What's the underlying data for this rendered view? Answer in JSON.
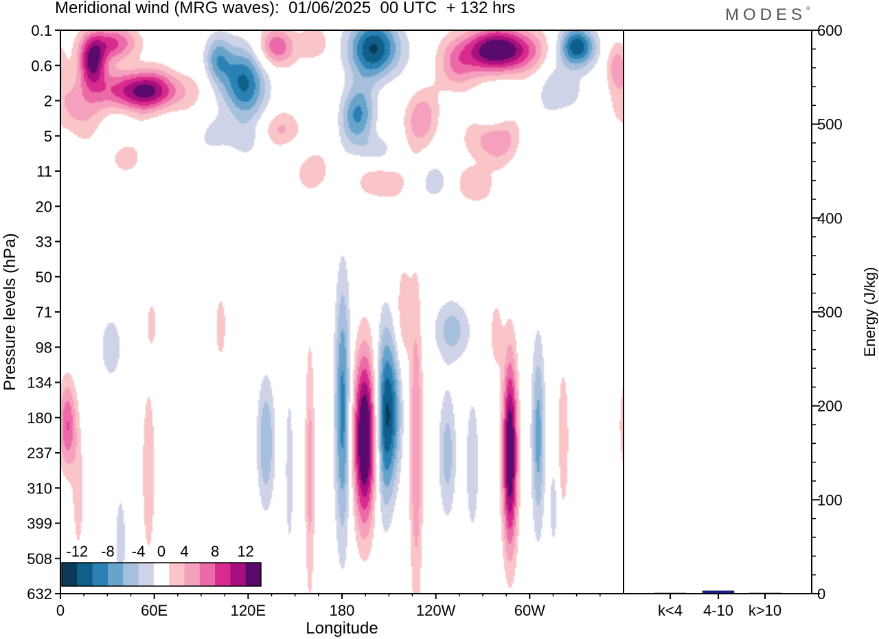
{
  "title": "Meridional wind (MRG waves):  01/06/2025  00 UTC  + 132 hrs",
  "logo": "MODES",
  "chart_data": [
    {
      "type": "heatmap",
      "title": "Meridional wind (MRG waves):  01/06/2025  00 UTC  + 132 hrs",
      "xlabel": "Longitude",
      "ylabel": "Pressure levels (hPa)",
      "x_ticks": [
        "0",
        "60E",
        "120E",
        "180",
        "120W",
        "60W"
      ],
      "x_tick_values": [
        0,
        60,
        120,
        180,
        240,
        300
      ],
      "xlim": [
        0,
        360
      ],
      "y_ticks": [
        "0.1",
        "0.6",
        "2",
        "5",
        "11",
        "20",
        "33",
        "50",
        "71",
        "98",
        "134",
        "180",
        "237",
        "310",
        "399",
        "508",
        "632"
      ],
      "colorbar": {
        "labels": [
          "-12",
          "-8",
          "-4",
          "0",
          "4",
          "8",
          "12"
        ],
        "levels": [
          -14,
          -12,
          -10,
          -8,
          -6,
          -4,
          -2,
          2,
          4,
          6,
          8,
          10,
          12,
          14
        ],
        "colors": [
          "#0b3b58",
          "#0f5f8a",
          "#2a82b4",
          "#68a3cc",
          "#a5bfdc",
          "#cfd3e8",
          "#ffffff",
          "#f9c5c8",
          "#f5a1bd",
          "#ec6aa7",
          "#d82b8d",
          "#a80f7e",
          "#5a0a6b"
        ]
      },
      "blobs": [
        {
          "lon": 194,
          "lev": 11.6,
          "sx": 5,
          "sy": 1.7,
          "v": 16
        },
        {
          "lon": 207,
          "lev": 11.0,
          "sx": 4,
          "sy": 1.8,
          "v": -10
        },
        {
          "lon": 213,
          "lev": 10.8,
          "sx": 4,
          "sy": 1.4,
          "v": -6
        },
        {
          "lon": 180,
          "lev": 10.8,
          "sx": 3.5,
          "sy": 2.6,
          "v": -9
        },
        {
          "lon": 227,
          "lev": 11.8,
          "sx": 3,
          "sy": 3.2,
          "v": 6
        },
        {
          "lon": 219,
          "lev": 8.0,
          "sx": 3.5,
          "sy": 1.0,
          "v": 4
        },
        {
          "lon": 159,
          "lev": 12.5,
          "sx": 2.2,
          "sy": 2.6,
          "v": 5
        },
        {
          "lon": 131,
          "lev": 11.7,
          "sx": 4,
          "sy": 1.3,
          "v": -6
        },
        {
          "lon": 146,
          "lev": 12.5,
          "sx": 2.2,
          "sy": 2.0,
          "v": -3
        },
        {
          "lon": 247,
          "lev": 12.0,
          "sx": 4,
          "sy": 1.3,
          "v": -5
        },
        {
          "lon": 263,
          "lev": 12.3,
          "sx": 3,
          "sy": 1.4,
          "v": -4
        },
        {
          "lon": 250,
          "lev": 8.5,
          "sx": 8,
          "sy": 0.6,
          "v": -5
        },
        {
          "lon": 287,
          "lev": 12.0,
          "sx": 3.4,
          "sy": 1.9,
          "v": 15
        },
        {
          "lon": 278,
          "lev": 8.6,
          "sx": 3,
          "sy": 0.8,
          "v": 3
        },
        {
          "lon": 305,
          "lev": 11.5,
          "sx": 3,
          "sy": 1.9,
          "v": -7
        },
        {
          "lon": 321,
          "lev": 11.6,
          "sx": 2.6,
          "sy": 1.5,
          "v": 4
        },
        {
          "lon": 315,
          "lev": 13.5,
          "sx": 2.2,
          "sy": 1.0,
          "v": -3
        },
        {
          "lon": 4,
          "lev": 11.2,
          "sx": 4,
          "sy": 0.9,
          "v": 8
        },
        {
          "lon": 11,
          "lev": 13.2,
          "sx": 3,
          "sy": 1.4,
          "v": 3
        },
        {
          "lon": 32,
          "lev": 9.0,
          "sx": 6,
          "sy": 0.8,
          "v": -3
        },
        {
          "lon": 56,
          "lev": 12.5,
          "sx": 3,
          "sy": 1.8,
          "v": 4
        },
        {
          "lon": 38,
          "lev": 14.5,
          "sx": 3,
          "sy": 1.2,
          "v": -3
        },
        {
          "lon": 102,
          "lev": 8.4,
          "sx": 3,
          "sy": 0.8,
          "v": 3
        },
        {
          "lon": 58,
          "lev": 8.3,
          "sx": 2.5,
          "sy": 0.5,
          "v": 3
        },
        {
          "lon": 33,
          "lev": 0.35,
          "sx": 12,
          "sy": 0.35,
          "v": 8
        },
        {
          "lon": 20,
          "lev": 0.9,
          "sx": 6,
          "sy": 0.5,
          "v": 12
        },
        {
          "lon": 52,
          "lev": 1.7,
          "sx": 18,
          "sy": 0.4,
          "v": 13
        },
        {
          "lon": 10,
          "lev": 2.2,
          "sx": 10,
          "sy": 0.6,
          "v": 5
        },
        {
          "lon": 117,
          "lev": 1.5,
          "sx": 9,
          "sy": 0.7,
          "v": -11
        },
        {
          "lon": 100,
          "lev": 0.8,
          "sx": 6,
          "sy": 0.5,
          "v": -7
        },
        {
          "lon": 138,
          "lev": 0.45,
          "sx": 8,
          "sy": 0.4,
          "v": 8
        },
        {
          "lon": 163,
          "lev": 0.35,
          "sx": 7,
          "sy": 0.35,
          "v": 4
        },
        {
          "lon": 200,
          "lev": 0.5,
          "sx": 12,
          "sy": 0.6,
          "v": -12
        },
        {
          "lon": 190,
          "lev": 2.4,
          "sx": 8,
          "sy": 0.6,
          "v": -8
        },
        {
          "lon": 280,
          "lev": 0.55,
          "sx": 17,
          "sy": 0.45,
          "v": 15
        },
        {
          "lon": 330,
          "lev": 0.45,
          "sx": 8,
          "sy": 0.4,
          "v": -12
        },
        {
          "lon": 253,
          "lev": 1.1,
          "sx": 8,
          "sy": 0.5,
          "v": 5
        },
        {
          "lon": 140,
          "lev": 2.8,
          "sx": 12,
          "sy": 0.35,
          "v": 4
        },
        {
          "lon": 230,
          "lev": 2.5,
          "sx": 9,
          "sy": 0.6,
          "v": 5
        },
        {
          "lon": 276,
          "lev": 3.0,
          "sx": 10,
          "sy": 0.5,
          "v": 8
        },
        {
          "lon": 275,
          "lev": 2.5,
          "sx": 8,
          "sy": 0.5,
          "v": -4
        },
        {
          "lon": 264,
          "lev": 4.4,
          "sx": 8,
          "sy": 0.4,
          "v": 4
        },
        {
          "lon": 200,
          "lev": 3.4,
          "sx": 8,
          "sy": 0.3,
          "v": -3
        },
        {
          "lon": 110,
          "lev": 3.0,
          "sx": 15,
          "sy": 0.4,
          "v": -3
        },
        {
          "lon": 160,
          "lev": 4.0,
          "sx": 10,
          "sy": 0.4,
          "v": 3
        },
        {
          "lon": 205,
          "lev": 4.3,
          "sx": 10,
          "sy": 0.4,
          "v": 4
        },
        {
          "lon": 320,
          "lev": 1.7,
          "sx": 10,
          "sy": 0.5,
          "v": -4
        },
        {
          "lon": 355,
          "lev": 1.0,
          "sx": 5,
          "sy": 0.5,
          "v": 5
        },
        {
          "lon": 40,
          "lev": 3.6,
          "sx": 8,
          "sy": 0.3,
          "v": 3
        },
        {
          "lon": 240,
          "lev": 4.3,
          "sx": 7,
          "sy": 0.35,
          "v": -3
        }
      ]
    },
    {
      "type": "bar",
      "ylabel": "Energy (J/kg)",
      "categories": [
        "k<4",
        "4-10",
        "k>10"
      ],
      "values": [
        0.5,
        3,
        0.3
      ],
      "ylim": [
        0,
        600
      ],
      "y_ticks": [
        "0",
        "100",
        "200",
        "300",
        "400",
        "500",
        "600"
      ],
      "bar_color": "#1a1aa0"
    }
  ]
}
